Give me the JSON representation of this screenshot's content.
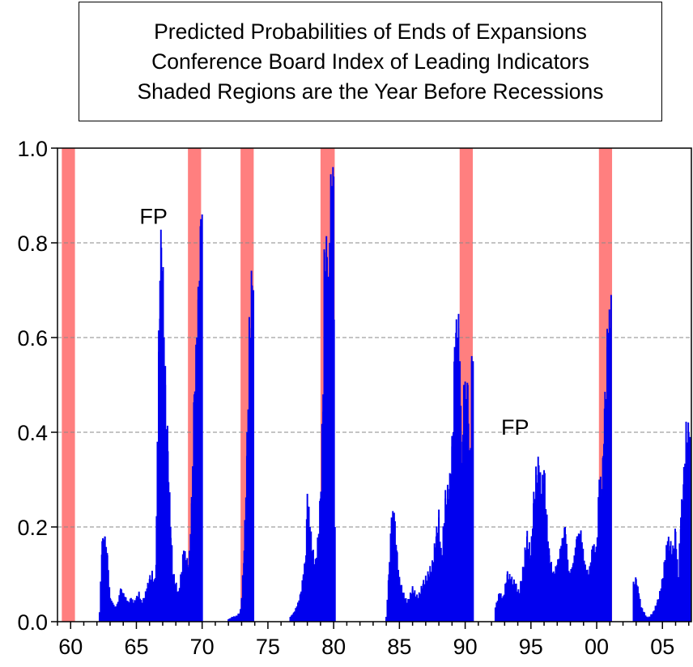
{
  "chart_data": {
    "type": "bar",
    "title_lines": [
      "Predicted Probabilities of Ends of Expansions",
      "Conference Board Index of Leading Indicators",
      "Shaded Regions are the Year Before Recessions"
    ],
    "xlabel": "",
    "ylabel": "",
    "xlim": [
      1959.0,
      2007.2
    ],
    "ylim": [
      0.0,
      1.0
    ],
    "x_tick_labels": [
      "60",
      "65",
      "70",
      "75",
      "80",
      "85",
      "90",
      "95",
      "00",
      "05"
    ],
    "x_tick_years": [
      1960,
      1965,
      1970,
      1975,
      1980,
      1985,
      1990,
      1995,
      2000,
      2005
    ],
    "y_tick_labels": [
      "0.0",
      "0.2",
      "0.4",
      "0.6",
      "0.8",
      "1.0"
    ],
    "y_tick_values": [
      0.0,
      0.2,
      0.4,
      0.6,
      0.8,
      1.0
    ],
    "grid": "horizontal dashed",
    "shaded_regions": [
      [
        1959.33,
        1960.33
      ],
      [
        1968.92,
        1969.92
      ],
      [
        1972.92,
        1973.92
      ],
      [
        1979.0,
        1980.08
      ],
      [
        1989.58,
        1990.58
      ],
      [
        2000.17,
        2001.17
      ]
    ],
    "annotations": [
      {
        "text": "FP",
        "x": 1966.3,
        "y": 0.84
      },
      {
        "text": "FP",
        "x": 1993.8,
        "y": 0.395
      }
    ],
    "series": [
      {
        "x": [
          1962.2,
          1962.4,
          1962.6,
          1962.8,
          1963.0,
          1963.2,
          1963.4,
          1963.6,
          1963.8,
          1964.0,
          1964.2,
          1964.4,
          1964.6,
          1964.8,
          1965.0,
          1965.2,
          1965.4,
          1965.6,
          1965.8,
          1966.0,
          1966.2,
          1966.4,
          1966.5,
          1966.6,
          1966.7,
          1966.8,
          1966.9,
          1967.0,
          1967.1,
          1967.2,
          1967.4,
          1967.6,
          1967.8,
          1968.0,
          1968.2,
          1968.4,
          1968.6,
          1968.8,
          1969.0,
          1969.2,
          1969.4,
          1969.6,
          1969.7,
          1969.8,
          1969.9,
          1970.0
        ],
        "values": [
          0.02,
          0.17,
          0.18,
          0.14,
          0.05,
          0.04,
          0.03,
          0.04,
          0.07,
          0.06,
          0.05,
          0.04,
          0.05,
          0.04,
          0.05,
          0.06,
          0.04,
          0.05,
          0.07,
          0.09,
          0.1,
          0.08,
          0.12,
          0.38,
          0.57,
          0.72,
          0.79,
          0.74,
          0.6,
          0.5,
          0.36,
          0.2,
          0.1,
          0.08,
          0.06,
          0.1,
          0.15,
          0.13,
          0.12,
          0.25,
          0.48,
          0.6,
          0.68,
          0.72,
          0.85,
          0.86
        ],
        "name": ""
      },
      {
        "x": [
          1972.0,
          1972.3,
          1972.6,
          1972.9,
          1973.0,
          1973.2,
          1973.4,
          1973.6,
          1973.8,
          1973.9
        ],
        "values": [
          0.005,
          0.01,
          0.012,
          0.02,
          0.05,
          0.15,
          0.35,
          0.62,
          0.71,
          0.7
        ],
        "name": ""
      },
      {
        "x": [
          1976.7,
          1977.0,
          1977.3,
          1977.5,
          1977.7,
          1977.9,
          1978.0,
          1978.2,
          1978.4,
          1978.6,
          1978.8,
          1979.0,
          1979.2,
          1979.3,
          1979.4,
          1979.5,
          1979.6,
          1979.7,
          1979.8,
          1979.9,
          1980.0,
          1980.1
        ],
        "values": [
          0.01,
          0.02,
          0.04,
          0.06,
          0.1,
          0.14,
          0.27,
          0.2,
          0.15,
          0.12,
          0.17,
          0.26,
          0.48,
          0.78,
          0.74,
          0.77,
          0.65,
          0.8,
          0.89,
          0.92,
          0.94,
          0.2
        ],
        "name": ""
      },
      {
        "x": [
          1984.0,
          1984.2,
          1984.4,
          1984.6,
          1984.8,
          1985.0,
          1985.3,
          1985.6,
          1986.0,
          1986.4,
          1986.8,
          1987.2,
          1987.5,
          1987.8,
          1988.0,
          1988.2,
          1988.5,
          1988.8,
          1989.0,
          1989.1,
          1989.2,
          1989.3,
          1989.4,
          1989.5,
          1989.6,
          1989.7,
          1989.8,
          1989.9,
          1990.0,
          1990.1,
          1990.2,
          1990.3,
          1990.4,
          1990.5,
          1990.6
        ],
        "values": [
          0.01,
          0.1,
          0.22,
          0.23,
          0.15,
          0.09,
          0.06,
          0.04,
          0.07,
          0.05,
          0.08,
          0.1,
          0.12,
          0.18,
          0.22,
          0.13,
          0.26,
          0.28,
          0.37,
          0.4,
          0.58,
          0.61,
          0.6,
          0.62,
          0.55,
          0.38,
          0.32,
          0.5,
          0.49,
          0.47,
          0.5,
          0.36,
          0.34,
          0.55,
          0.55
        ],
        "name": ""
      },
      {
        "x": [
          1992.3,
          1992.6,
          1992.9,
          1993.2,
          1993.5,
          1993.8,
          1994.1,
          1994.4,
          1994.7,
          1995.0,
          1995.2,
          1995.4,
          1995.6,
          1995.8,
          1996.0,
          1996.2,
          1996.4,
          1996.7,
          1997.0,
          1997.3,
          1997.6,
          1997.9,
          1998.2,
          1998.5,
          1998.8,
          1999.1,
          1999.4,
          1999.7,
          2000.0,
          2000.2,
          2000.4,
          2000.5,
          2000.6,
          2000.7,
          2000.8,
          2000.9,
          2001.0,
          2001.1
        ],
        "values": [
          0.03,
          0.06,
          0.05,
          0.1,
          0.09,
          0.08,
          0.06,
          0.11,
          0.18,
          0.14,
          0.25,
          0.31,
          0.33,
          0.27,
          0.32,
          0.22,
          0.14,
          0.1,
          0.12,
          0.16,
          0.2,
          0.1,
          0.12,
          0.18,
          0.19,
          0.12,
          0.1,
          0.16,
          0.15,
          0.3,
          0.28,
          0.35,
          0.45,
          0.47,
          0.58,
          0.61,
          0.62,
          0.69
        ],
        "name": ""
      },
      {
        "x": [
          2002.8,
          2003.0,
          2003.2,
          2003.4,
          2003.6,
          2003.8,
          2004.0,
          2004.3,
          2004.6,
          2004.9,
          2005.2,
          2005.4,
          2005.6,
          2005.8,
          2006.0,
          2006.2,
          2006.4,
          2006.6,
          2006.8,
          2007.0,
          2007.1
        ],
        "values": [
          0.08,
          0.09,
          0.06,
          0.03,
          0.02,
          0.01,
          0.01,
          0.02,
          0.04,
          0.07,
          0.13,
          0.17,
          0.16,
          0.15,
          0.19,
          0.09,
          0.22,
          0.29,
          0.4,
          0.4,
          0.39
        ],
        "name": ""
      }
    ],
    "colors": {
      "bars": "#0000ee",
      "shading": "#ff7f7f",
      "grid": "#8a8a8a",
      "axes": "#000000"
    }
  }
}
